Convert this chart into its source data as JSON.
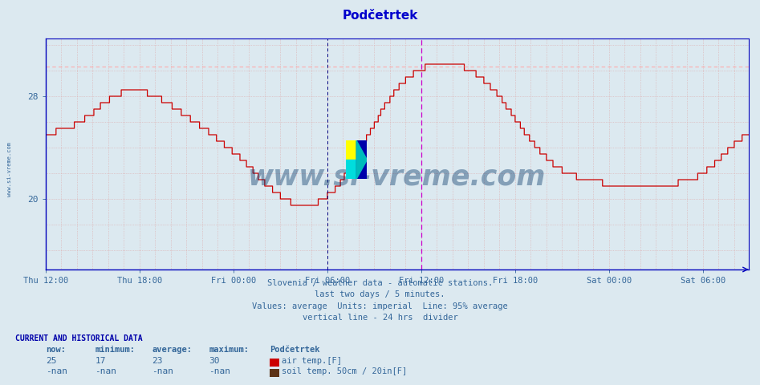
{
  "title": "Podčetrtek",
  "background_color": "#dce9f0",
  "plot_bg_color": "#dce9f0",
  "line_color": "#cc0000",
  "avg_line_color": "#ffaaaa",
  "avg_line_value": 30.3,
  "vline_24hr_color": "#cc00cc",
  "vline_now_color": "#000080",
  "grid_color": "#ddaaaa",
  "axis_color": "#0000bb",
  "tick_color": "#336699",
  "ylim": [
    14.5,
    32.5
  ],
  "yticks": [
    20,
    28
  ],
  "subtitle_lines": [
    "Slovenia / weather data - automatic stations.",
    "last two days / 5 minutes.",
    "Values: average  Units: imperial  Line: 95% average",
    "vertical line - 24 hrs  divider"
  ],
  "footer_header": "CURRENT AND HISTORICAL DATA",
  "footer_cols": [
    "now:",
    "minimum:",
    "average:",
    "maximum:",
    "Podčetrtek"
  ],
  "footer_row1": [
    "25",
    "17",
    "23",
    "30",
    "air temp.[F]"
  ],
  "footer_row2": [
    "-nan",
    "-nan",
    "-nan",
    "-nan",
    "soil temp. 50cm / 20in[F]"
  ],
  "legend_colors": [
    "#cc0000",
    "#5c3317"
  ],
  "watermark_text": "www.si-vreme.com",
  "num_points": 540,
  "vline_now_idx": 216,
  "vline_24hr_idx": 288,
  "xtick_labels": [
    "Thu 12:00",
    "Thu 18:00",
    "Fri 00:00",
    "Fri 06:00",
    "Fri 12:00",
    "Fri 18:00",
    "Sat 00:00",
    "Sat 06:00"
  ],
  "xtick_positions": [
    0,
    72,
    144,
    216,
    288,
    360,
    432,
    504
  ]
}
